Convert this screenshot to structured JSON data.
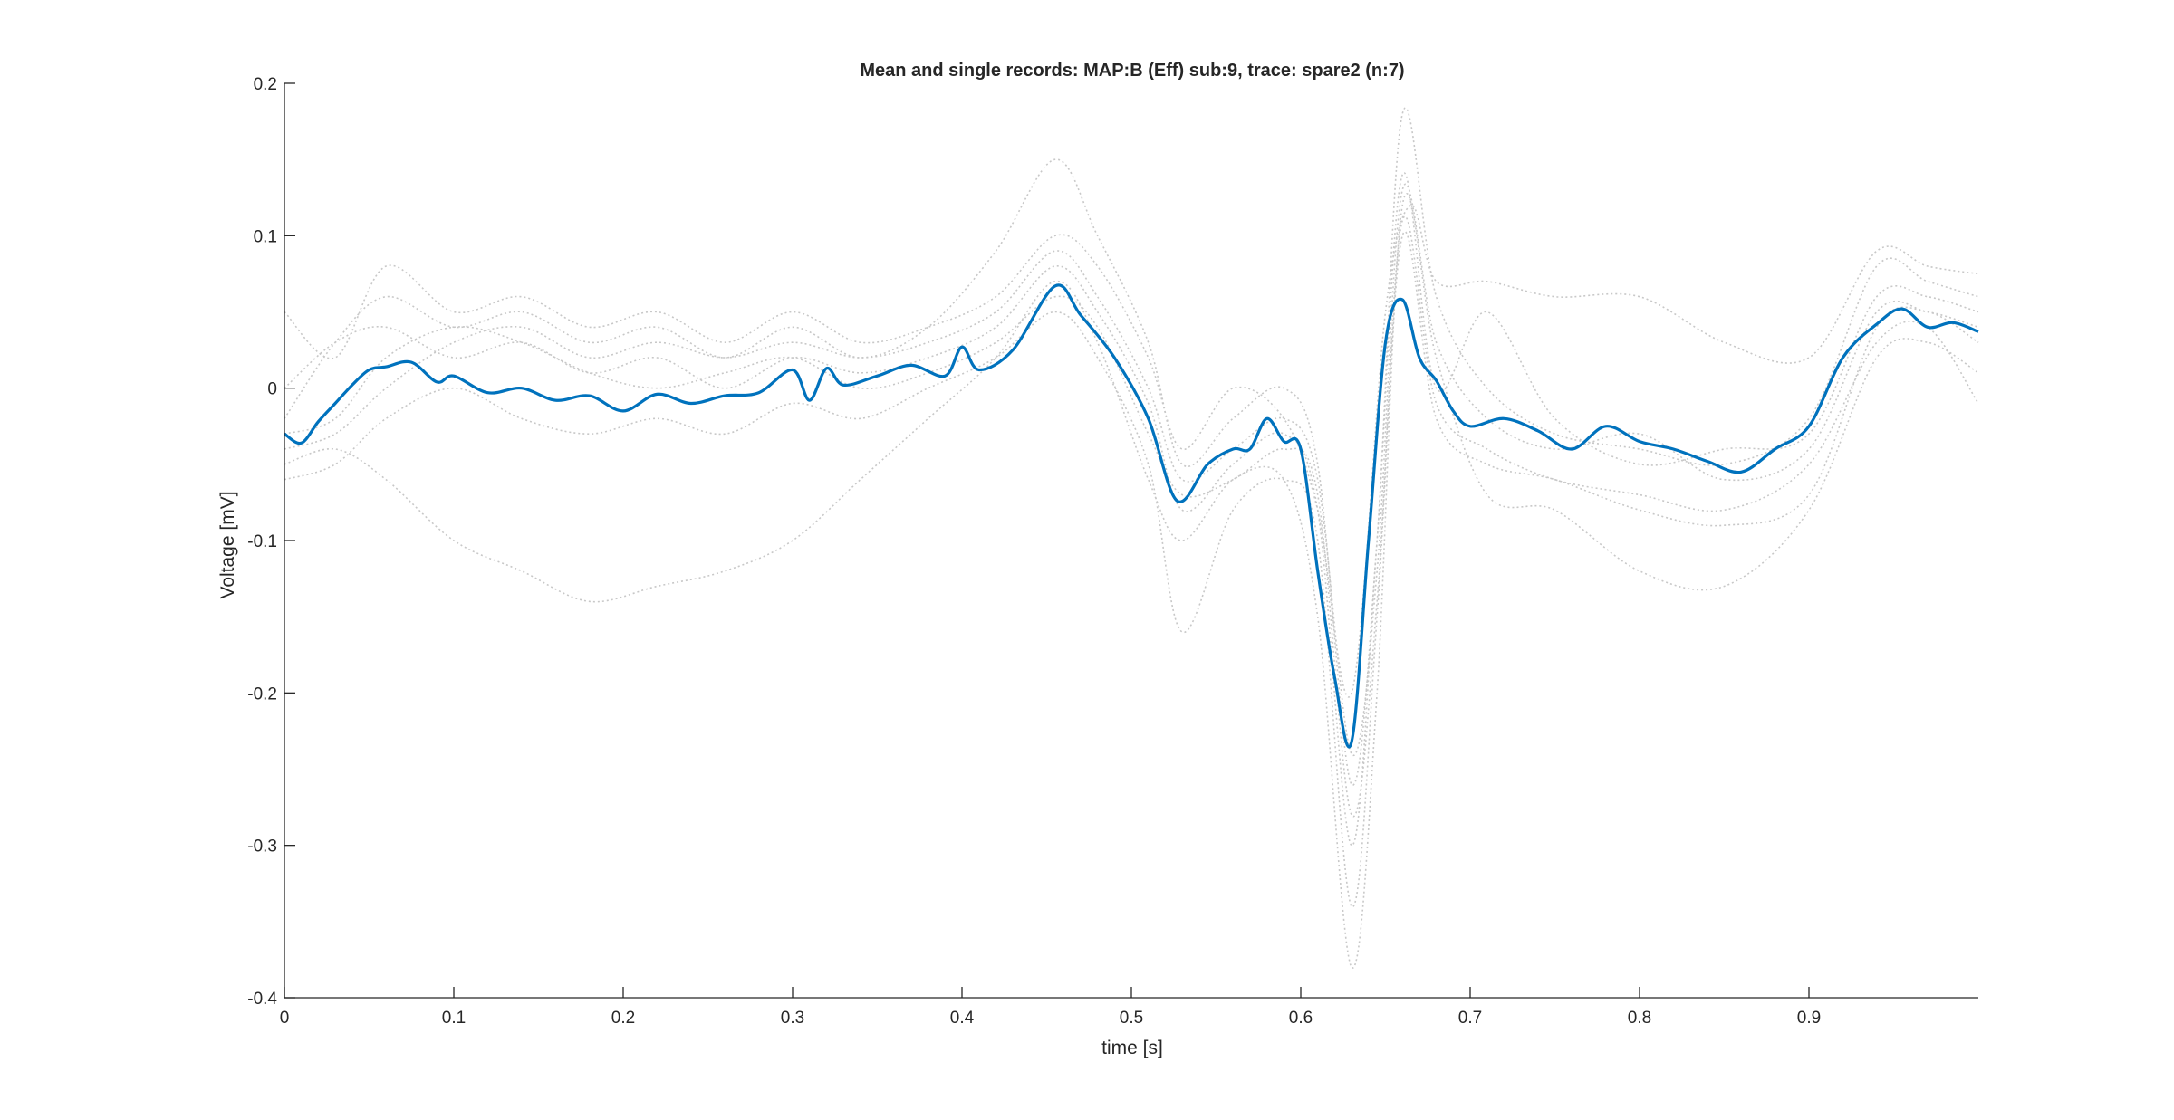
{
  "chart_data": {
    "type": "line",
    "title": "Mean and single records: MAP:B (Eff) sub:9, trace: spare2 (n:7)",
    "xlabel": "time [s]",
    "ylabel": "Voltage [mV]",
    "xlim": [
      0,
      1.0
    ],
    "ylim": [
      -0.4,
      0.2
    ],
    "xticks": [
      0,
      0.1,
      0.2,
      0.3,
      0.4,
      0.5,
      0.6,
      0.7,
      0.8,
      0.9
    ],
    "xtick_labels": [
      "0",
      "0.1",
      "0.2",
      "0.3",
      "0.4",
      "0.5",
      "0.6",
      "0.7",
      "0.8",
      "0.9"
    ],
    "yticks": [
      -0.4,
      -0.3,
      -0.2,
      -0.1,
      0,
      0.1,
      0.2
    ],
    "ytick_labels": [
      "-0.4",
      "-0.3",
      "-0.2",
      "-0.1",
      "0",
      "0.1",
      "0.2"
    ],
    "grid": false,
    "legend": "none",
    "colors": {
      "mean": "#0072BD",
      "single": "#c8c8c8",
      "axis": "#262626"
    },
    "series": [
      {
        "role": "mean",
        "x": [
          0,
          0.01,
          0.02,
          0.03,
          0.04,
          0.05,
          0.06,
          0.075,
          0.09,
          0.1,
          0.12,
          0.14,
          0.16,
          0.18,
          0.2,
          0.22,
          0.24,
          0.26,
          0.28,
          0.3,
          0.31,
          0.32,
          0.33,
          0.35,
          0.37,
          0.39,
          0.4,
          0.41,
          0.43,
          0.455,
          0.47,
          0.49,
          0.51,
          0.527,
          0.545,
          0.56,
          0.57,
          0.58,
          0.59,
          0.6,
          0.61,
          0.62,
          0.63,
          0.64,
          0.65,
          0.66,
          0.67,
          0.68,
          0.69,
          0.7,
          0.72,
          0.74,
          0.76,
          0.78,
          0.8,
          0.82,
          0.84,
          0.86,
          0.88,
          0.9,
          0.92,
          0.94,
          0.955,
          0.97,
          0.985,
          1.0
        ],
        "values": [
          -0.03,
          -0.036,
          -0.022,
          -0.01,
          0.002,
          0.012,
          0.014,
          0.017,
          0.004,
          0.008,
          -0.003,
          0,
          -0.008,
          -0.005,
          -0.015,
          -0.004,
          -0.01,
          -0.005,
          -0.003,
          0.012,
          -0.008,
          0.013,
          0.002,
          0.008,
          0.015,
          0.008,
          0.027,
          0.012,
          0.025,
          0.067,
          0.048,
          0.02,
          -0.02,
          -0.074,
          -0.05,
          -0.04,
          -0.04,
          -0.02,
          -0.035,
          -0.04,
          -0.12,
          -0.19,
          -0.232,
          -0.1,
          0.03,
          0.058,
          0.02,
          0.005,
          -0.015,
          -0.025,
          -0.02,
          -0.028,
          -0.04,
          -0.025,
          -0.035,
          -0.04,
          -0.048,
          -0.055,
          -0.04,
          -0.025,
          0.02,
          0.042,
          0.052,
          0.04,
          0.043,
          0.037
        ]
      },
      {
        "role": "single",
        "x": [
          0,
          0.03,
          0.06,
          0.1,
          0.14,
          0.18,
          0.22,
          0.26,
          0.3,
          0.34,
          0.38,
          0.42,
          0.455,
          0.48,
          0.51,
          0.53,
          0.56,
          0.59,
          0.61,
          0.63,
          0.65,
          0.665,
          0.68,
          0.71,
          0.75,
          0.8,
          0.85,
          0.9,
          0.94,
          0.97,
          1.0
        ],
        "values": [
          0.05,
          0.02,
          0.08,
          0.05,
          0.06,
          0.04,
          0.05,
          0.03,
          0.05,
          0.03,
          0.04,
          0.06,
          0.1,
          0.08,
          0.02,
          -0.04,
          0.0,
          -0.02,
          -0.08,
          -0.2,
          0.05,
          0.12,
          0.07,
          0.07,
          0.06,
          0.06,
          0.03,
          0.02,
          0.09,
          0.08,
          0.075
        ]
      },
      {
        "role": "single",
        "x": [
          0,
          0.03,
          0.06,
          0.1,
          0.14,
          0.18,
          0.22,
          0.26,
          0.3,
          0.34,
          0.38,
          0.42,
          0.455,
          0.48,
          0.51,
          0.53,
          0.56,
          0.59,
          0.61,
          0.63,
          0.645,
          0.66,
          0.68,
          0.71,
          0.75,
          0.8,
          0.85,
          0.9,
          0.94,
          0.97,
          1.0
        ],
        "values": [
          -0.02,
          0.03,
          0.06,
          0.04,
          0.05,
          0.03,
          0.04,
          0.02,
          0.04,
          0.02,
          0.04,
          0.09,
          0.15,
          0.1,
          0.03,
          -0.05,
          -0.02,
          0.0,
          -0.05,
          -0.26,
          -0.1,
          0.18,
          0.06,
          0.0,
          -0.03,
          -0.04,
          -0.05,
          -0.02,
          0.08,
          0.07,
          0.06
        ]
      },
      {
        "role": "single",
        "x": [
          0,
          0.03,
          0.06,
          0.1,
          0.14,
          0.18,
          0.22,
          0.26,
          0.3,
          0.34,
          0.38,
          0.42,
          0.455,
          0.48,
          0.51,
          0.53,
          0.56,
          0.59,
          0.61,
          0.63,
          0.645,
          0.66,
          0.68,
          0.71,
          0.75,
          0.8,
          0.85,
          0.9,
          0.94,
          0.97,
          1.0
        ],
        "values": [
          -0.05,
          -0.04,
          -0.06,
          -0.1,
          -0.12,
          -0.14,
          -0.13,
          -0.12,
          -0.1,
          -0.06,
          -0.02,
          0.02,
          0.07,
          0.03,
          -0.06,
          -0.1,
          -0.06,
          -0.06,
          -0.15,
          -0.38,
          -0.2,
          0.12,
          0.02,
          -0.07,
          -0.08,
          -0.12,
          -0.13,
          -0.08,
          0.02,
          0.03,
          0.01
        ]
      },
      {
        "role": "single",
        "x": [
          0,
          0.03,
          0.06,
          0.1,
          0.14,
          0.18,
          0.22,
          0.26,
          0.3,
          0.34,
          0.38,
          0.42,
          0.455,
          0.48,
          0.51,
          0.53,
          0.56,
          0.59,
          0.61,
          0.63,
          0.645,
          0.66,
          0.68,
          0.71,
          0.75,
          0.8,
          0.85,
          0.9,
          0.94,
          0.97,
          1.0
        ],
        "values": [
          -0.06,
          -0.05,
          -0.02,
          0.0,
          -0.02,
          -0.03,
          -0.02,
          -0.03,
          -0.01,
          -0.02,
          0.0,
          0.02,
          0.05,
          0.02,
          -0.05,
          -0.16,
          -0.08,
          -0.06,
          -0.1,
          -0.34,
          -0.15,
          0.1,
          -0.02,
          -0.05,
          -0.06,
          -0.08,
          -0.09,
          -0.07,
          0.04,
          0.05,
          0.03
        ]
      },
      {
        "role": "single",
        "x": [
          0,
          0.03,
          0.06,
          0.1,
          0.14,
          0.18,
          0.22,
          0.26,
          0.3,
          0.34,
          0.38,
          0.42,
          0.455,
          0.48,
          0.51,
          0.53,
          0.56,
          0.59,
          0.61,
          0.63,
          0.645,
          0.66,
          0.68,
          0.71,
          0.75,
          0.8,
          0.85,
          0.9,
          0.94,
          0.97,
          1.0
        ],
        "values": [
          0.0,
          0.03,
          0.04,
          0.02,
          0.03,
          0.01,
          0.02,
          0.0,
          0.02,
          0.01,
          0.02,
          0.04,
          0.08,
          0.05,
          -0.01,
          -0.08,
          -0.05,
          -0.03,
          -0.08,
          -0.3,
          -0.1,
          0.14,
          0.0,
          0.05,
          -0.02,
          -0.05,
          -0.04,
          -0.03,
          0.06,
          0.06,
          0.05
        ]
      },
      {
        "role": "single",
        "x": [
          0,
          0.03,
          0.06,
          0.1,
          0.14,
          0.18,
          0.22,
          0.26,
          0.3,
          0.34,
          0.38,
          0.42,
          0.455,
          0.48,
          0.51,
          0.53,
          0.56,
          0.59,
          0.61,
          0.63,
          0.645,
          0.66,
          0.68,
          0.71,
          0.75,
          0.8,
          0.85,
          0.9,
          0.94,
          0.97,
          1.0
        ],
        "values": [
          -0.04,
          -0.03,
          0.0,
          0.03,
          0.04,
          0.02,
          0.03,
          0.02,
          0.03,
          0.02,
          0.03,
          0.05,
          0.09,
          0.06,
          0.0,
          -0.06,
          -0.04,
          -0.02,
          -0.06,
          -0.24,
          -0.12,
          0.13,
          0.03,
          -0.02,
          -0.04,
          -0.03,
          -0.06,
          -0.04,
          0.05,
          0.05,
          0.04
        ]
      },
      {
        "role": "single",
        "x": [
          0,
          0.03,
          0.06,
          0.1,
          0.14,
          0.18,
          0.22,
          0.26,
          0.3,
          0.34,
          0.38,
          0.42,
          0.455,
          0.48,
          0.51,
          0.53,
          0.56,
          0.59,
          0.61,
          0.63,
          0.645,
          0.66,
          0.68,
          0.71,
          0.75,
          0.8,
          0.85,
          0.9,
          0.94,
          0.97,
          1.0
        ],
        "values": [
          -0.03,
          -0.02,
          0.02,
          0.04,
          0.03,
          0.01,
          0.0,
          0.01,
          0.02,
          0.0,
          0.01,
          0.03,
          0.06,
          0.04,
          -0.03,
          -0.07,
          -0.06,
          -0.04,
          -0.07,
          -0.28,
          -0.14,
          0.11,
          -0.01,
          -0.04,
          -0.06,
          -0.07,
          -0.08,
          -0.05,
          0.03,
          0.04,
          -0.01
        ]
      }
    ]
  }
}
